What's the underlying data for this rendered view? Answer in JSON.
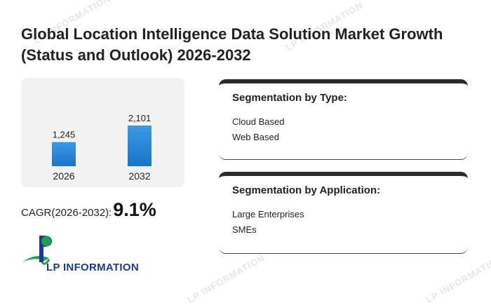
{
  "title": "Global Location Intelligence Data Solution Market Growth (Status and Outlook) 2026-2032",
  "chart_data": {
    "type": "bar",
    "categories": [
      "2026",
      "2032"
    ],
    "values": [
      1245,
      2101
    ],
    "value_labels": [
      "1,245",
      "2,101"
    ],
    "bar_color": "#1a73c9"
  },
  "cagr": {
    "label": "CAGR(2026-2032):",
    "value": "9.1%"
  },
  "segmentation_type": {
    "title": "Segmentation by Type:",
    "items": [
      "Cloud Based",
      "Web Based"
    ]
  },
  "segmentation_application": {
    "title": "Segmentation by Application:",
    "items": [
      "Large Enterprises",
      "SMEs"
    ]
  },
  "logo": {
    "text": "LP INFORMATION",
    "icon": "lp-information-logo-icon"
  },
  "watermark": "LP INFORMATION"
}
